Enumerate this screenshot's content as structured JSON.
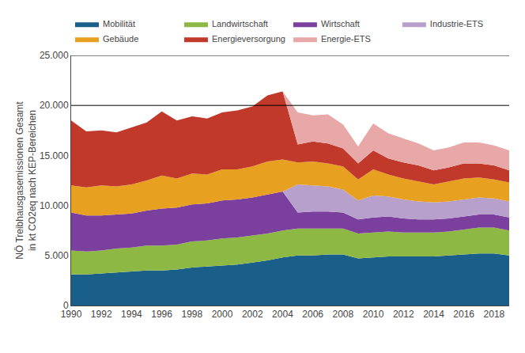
{
  "chart_data": {
    "type": "area",
    "stacked": true,
    "ylabel": "NÖ Treibhausgasemissionen Gesamt\nin kt CO2eq nach KEP-Bereichen",
    "x": [
      1990,
      1991,
      1992,
      1993,
      1994,
      1995,
      1996,
      1997,
      1998,
      1999,
      2000,
      2001,
      2002,
      2003,
      2004,
      2005,
      2006,
      2007,
      2008,
      2009,
      2010,
      2011,
      2012,
      2013,
      2014,
      2015,
      2016,
      2017,
      2018,
      2019
    ],
    "series": [
      {
        "name": "Mobilität",
        "color": "#1a5f8a",
        "values": [
          3100,
          3100,
          3200,
          3300,
          3400,
          3500,
          3500,
          3600,
          3800,
          3900,
          4000,
          4100,
          4300,
          4500,
          4800,
          5000,
          5000,
          5100,
          5100,
          4700,
          4800,
          4900,
          4900,
          4900,
          4900,
          5000,
          5100,
          5200,
          5200,
          5000
        ]
      },
      {
        "name": "Landwirtschaft",
        "color": "#8db844",
        "values": [
          2400,
          2300,
          2300,
          2400,
          2400,
          2500,
          2500,
          2500,
          2600,
          2600,
          2700,
          2700,
          2700,
          2700,
          2700,
          2700,
          2700,
          2600,
          2600,
          2500,
          2500,
          2500,
          2400,
          2400,
          2400,
          2400,
          2500,
          2600,
          2600,
          2500
        ]
      },
      {
        "name": "Wirtschaft",
        "color": "#7b3f9e",
        "values": [
          3800,
          3600,
          3500,
          3400,
          3400,
          3500,
          3700,
          3700,
          3700,
          3700,
          3800,
          3800,
          3800,
          3900,
          3900,
          1600,
          1700,
          1700,
          1600,
          1400,
          1500,
          1500,
          1400,
          1300,
          1300,
          1300,
          1300,
          1300,
          1300,
          1300
        ]
      },
      {
        "name": "Industrie-ETS",
        "color": "#b8a0cc",
        "values": [
          0,
          0,
          0,
          0,
          0,
          0,
          0,
          0,
          0,
          0,
          0,
          0,
          0,
          0,
          0,
          2800,
          2600,
          2500,
          2300,
          1900,
          2200,
          2000,
          1900,
          1800,
          1700,
          1700,
          1700,
          1700,
          1600,
          1600
        ]
      },
      {
        "name": "Gebäude",
        "color": "#e8a020",
        "values": [
          2700,
          2800,
          3000,
          2800,
          2900,
          3000,
          3300,
          2900,
          3100,
          2900,
          3100,
          3000,
          3100,
          3300,
          3200,
          2200,
          2400,
          2300,
          2300,
          2100,
          2600,
          2200,
          2100,
          2000,
          1800,
          2000,
          2100,
          2000,
          1900,
          1900
        ]
      },
      {
        "name": "Energieversorgung",
        "color": "#c0392b",
        "values": [
          6500,
          5600,
          5500,
          5400,
          5700,
          5800,
          6400,
          5800,
          5700,
          5600,
          5700,
          5900,
          6000,
          6600,
          6800,
          1800,
          2000,
          2000,
          1800,
          1600,
          1900,
          1600,
          1600,
          1600,
          1400,
          1400,
          1500,
          1400,
          1400,
          1200
        ]
      },
      {
        "name": "Energie-ETS",
        "color": "#e8a8a8",
        "values": [
          0,
          0,
          0,
          0,
          0,
          0,
          0,
          0,
          0,
          0,
          0,
          0,
          0,
          0,
          0,
          3200,
          2600,
          2900,
          2400,
          1700,
          2700,
          2500,
          2400,
          2200,
          2000,
          2000,
          2100,
          2100,
          2000,
          2000
        ]
      }
    ],
    "xlim": [
      1990,
      2019
    ],
    "xticks": [
      1990,
      1992,
      1994,
      1996,
      1998,
      2000,
      2002,
      2004,
      2006,
      2008,
      2010,
      2012,
      2014,
      2016,
      2018
    ],
    "ylim": [
      0,
      25000
    ],
    "yticks": [
      0,
      {
        "value": 5000,
        "label": "5.000"
      },
      {
        "value": 10000,
        "label": "10.000"
      },
      {
        "value": 15000,
        "label": "15.000"
      },
      {
        "value": 20000,
        "label": "20.000"
      },
      {
        "value": 25000,
        "label": "25.000"
      }
    ],
    "hlines": [
      20000,
      25000
    ],
    "grid": false,
    "legend": "top"
  }
}
